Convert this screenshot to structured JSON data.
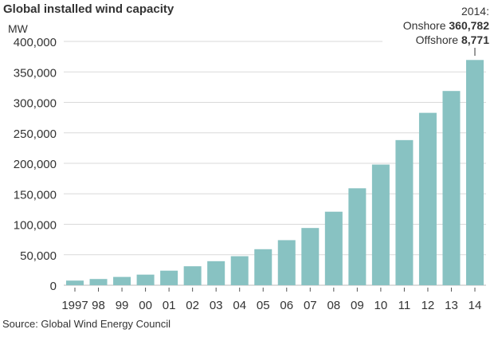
{
  "chart_data": {
    "type": "bar",
    "title": "Global installed wind capacity",
    "ylabel": "MW",
    "xlabel": "",
    "categories": [
      "1997",
      "98",
      "99",
      "00",
      "01",
      "02",
      "03",
      "04",
      "05",
      "06",
      "07",
      "08",
      "09",
      "10",
      "11",
      "12",
      "13",
      "14"
    ],
    "values": [
      7600,
      10200,
      13600,
      17400,
      23900,
      31100,
      39431,
      47620,
      59091,
      73938,
      93889,
      120624,
      159052,
      197956,
      238110,
      282850,
      318697,
      369553
    ],
    "ylim": [
      0,
      400000
    ],
    "yticks": [
      "0",
      "50,000",
      "100,000",
      "150,000",
      "200,000",
      "250,000",
      "300,000",
      "350,000",
      "400,000"
    ],
    "grid": true,
    "bar_color": "#88c2c2",
    "annotation": {
      "year": "2014:",
      "onshore_label": "Onshore",
      "onshore_value": "360,782",
      "offshore_label": "Offshore",
      "offshore_value": "8,771"
    },
    "source": "Source: Global Wind Energy Council"
  }
}
